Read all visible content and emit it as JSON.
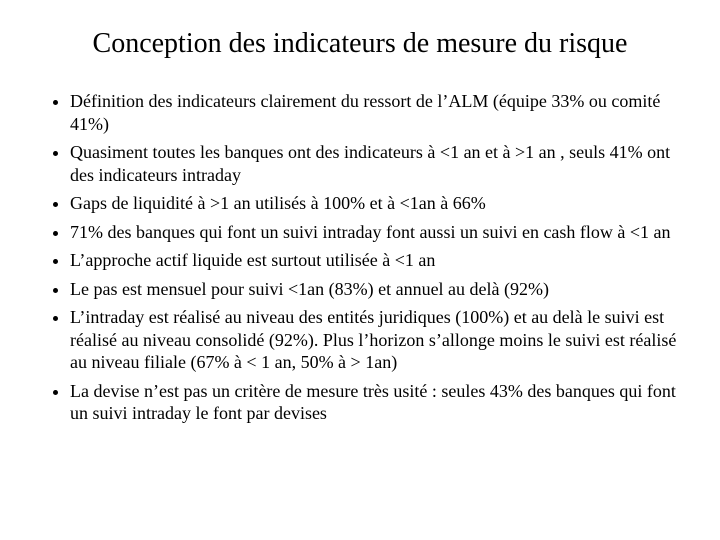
{
  "slide": {
    "title": "Conception des indicateurs de mesure du risque",
    "title_fontsize": 28,
    "body_fontsize": 18,
    "background_color": "#ffffff",
    "text_color": "#000000",
    "font_family": "Times New Roman",
    "bullets": [
      "Définition des indicateurs clairement du ressort de l’ALM (équipe 33% ou comité 41%)",
      "Quasiment toutes les banques ont des indicateurs à <1 an et à >1 an , seuls 41% ont des indicateurs intraday",
      "Gaps de liquidité à >1 an utilisés à 100% et à <1an à 66%",
      "71% des banques qui font un suivi intraday font aussi un suivi en cash flow à <1 an",
      "L’approche actif liquide est surtout utilisée à <1 an",
      "Le pas est mensuel pour suivi <1an (83%) et annuel au delà (92%)",
      "L’intraday est réalisé au niveau des entités juridiques (100%) et au delà le suivi est réalisé au niveau consolidé (92%). Plus l’horizon s’allonge moins le suivi est réalisé au niveau filiale (67% à < 1 an, 50% à > 1an)",
      "La devise n’est  pas un critère de mesure très usité : seules 43% des banques qui font un suivi intraday le font par devises"
    ]
  }
}
